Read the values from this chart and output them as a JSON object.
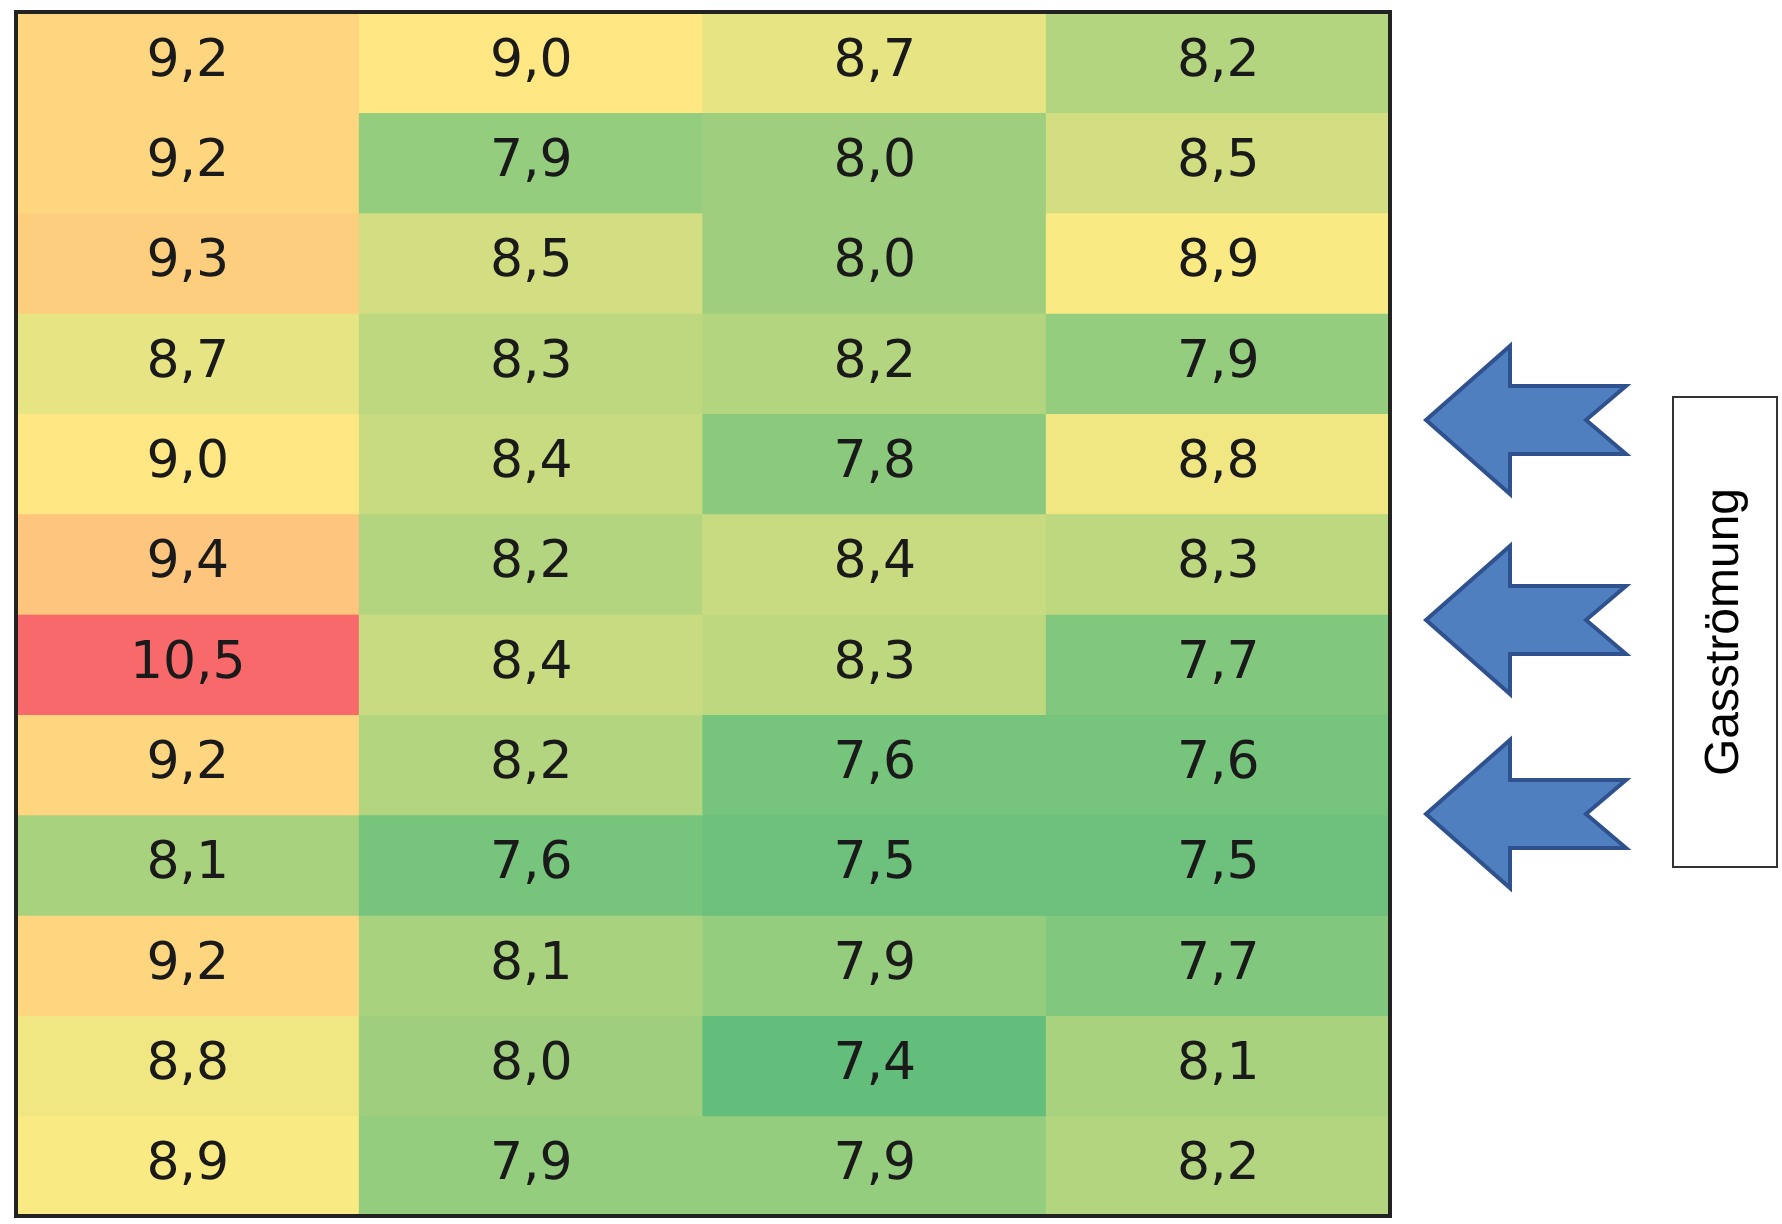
{
  "chart_data": {
    "type": "heatmap",
    "categories": [
      null,
      null,
      null,
      null
    ],
    "y_categories": [
      null,
      null,
      null,
      null,
      null,
      null,
      null,
      null,
      null,
      null,
      null,
      null
    ],
    "cells": [
      [
        9.2,
        9.0,
        8.7,
        8.2
      ],
      [
        9.2,
        7.9,
        8.0,
        8.5
      ],
      [
        9.3,
        8.5,
        8.0,
        8.9
      ],
      [
        8.7,
        8.3,
        8.2,
        7.9
      ],
      [
        9.0,
        8.4,
        7.8,
        8.8
      ],
      [
        9.4,
        8.2,
        8.4,
        8.3
      ],
      [
        10.5,
        8.4,
        8.3,
        7.7
      ],
      [
        9.2,
        8.2,
        7.6,
        7.6
      ],
      [
        8.1,
        7.6,
        7.5,
        7.5
      ],
      [
        9.2,
        8.1,
        7.9,
        7.7
      ],
      [
        8.8,
        8.0,
        7.4,
        8.1
      ],
      [
        8.9,
        7.9,
        7.9,
        8.2
      ]
    ],
    "cell_labels": [
      [
        "9,2",
        "9,0",
        "8,7",
        "8,2"
      ],
      [
        "9,2",
        "7,9",
        "8,0",
        "8,5"
      ],
      [
        "9,3",
        "8,5",
        "8,0",
        "8,9"
      ],
      [
        "8,7",
        "8,3",
        "8,2",
        "7,9"
      ],
      [
        "9,0",
        "8,4",
        "7,8",
        "8,8"
      ],
      [
        "9,4",
        "8,2",
        "8,4",
        "8,3"
      ],
      [
        "10,5",
        "8,4",
        "8,3",
        "7,7"
      ],
      [
        "9,2",
        "8,2",
        "7,6",
        "7,6"
      ],
      [
        "8,1",
        "7,6",
        "7,5",
        "7,5"
      ],
      [
        "9,2",
        "8,1",
        "7,9",
        "7,7"
      ],
      [
        "8,8",
        "8,0",
        "7,4",
        "8,1"
      ],
      [
        "8,9",
        "7,9",
        "7,9",
        "8,2"
      ]
    ],
    "tick_labels": false,
    "annotations": [
      "Gasströmung"
    ]
  }
}
